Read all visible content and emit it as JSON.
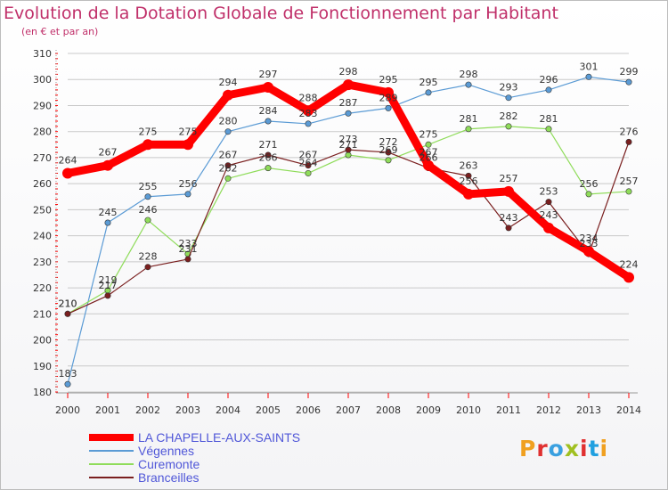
{
  "title": "Evolution de la Dotation Globale de Fonctionnement par Habitant",
  "subtitle": "(en € et par an)",
  "logo_text": "Proxiti",
  "colors": {
    "title": "#c0306a",
    "legend_text": "#5057d8",
    "grid": "#c9c9c9",
    "axis_ticks": "#ff0000",
    "logo_letters": [
      "#f0a020",
      "#e03030",
      "#3aa0e0",
      "#a0c020",
      "#e03030",
      "#20a0e0",
      "#f0a020"
    ]
  },
  "chart_data": {
    "type": "line",
    "title": "Evolution de la Dotation Globale de Fonctionnement par Habitant",
    "subtitle": "(en € et par an)",
    "xlabel": "",
    "ylabel": "",
    "x": [
      "2000",
      "2001",
      "2002",
      "2003",
      "2004",
      "2005",
      "2006",
      "2007",
      "2008",
      "2009",
      "2010",
      "2011",
      "2012",
      "2013",
      "2014"
    ],
    "yticks": [
      "180",
      "190",
      "200",
      "210",
      "220",
      "230",
      "240",
      "250",
      "260",
      "270",
      "280",
      "290",
      "300",
      "310"
    ],
    "ylim": [
      180,
      310
    ],
    "grid": "horizontal",
    "legend_position": "bottom-left",
    "series": [
      {
        "name": "LA CHAPELLE-AUX-SAINTS",
        "color": "#ff0000",
        "values": [
          264,
          267,
          275,
          275,
          294,
          297,
          288,
          298,
          295,
          267,
          256,
          257,
          243,
          234,
          224
        ],
        "labels": [
          "264",
          "267",
          "275",
          "275",
          "294",
          "297",
          "288",
          "298",
          "295",
          "267",
          "256",
          "257",
          "243",
          "234",
          "224"
        ]
      },
      {
        "name": "Végennes",
        "color": "#5b9bd5",
        "values": [
          183,
          245,
          255,
          256,
          280,
          284,
          283,
          287,
          289,
          295,
          298,
          293,
          296,
          301,
          299
        ],
        "labels": [
          "183",
          "245",
          "255",
          "256",
          "280",
          "284",
          "283",
          "287",
          "289",
          "295",
          "298",
          "293",
          "296",
          "301",
          "299"
        ]
      },
      {
        "name": "Curemonte",
        "color": "#8fdc5a",
        "values": [
          210,
          219,
          246,
          233,
          262,
          266,
          264,
          271,
          269,
          275,
          281,
          282,
          281,
          256,
          257
        ],
        "labels": [
          "210",
          "219",
          "246",
          "233",
          "262",
          "266",
          "264",
          "271",
          "269",
          "275",
          "281",
          "282",
          "281",
          "256",
          "257"
        ]
      },
      {
        "name": "Branceilles",
        "color": "#7a1f1f",
        "values": [
          210,
          217,
          228,
          231,
          267,
          271,
          267,
          273,
          272,
          266,
          263,
          243,
          253,
          233,
          276
        ],
        "labels": [
          "210",
          "217",
          "228",
          "231",
          "267",
          "271",
          "267",
          "273",
          "272",
          "266",
          "263",
          "243",
          "253",
          "233",
          "276"
        ]
      }
    ]
  }
}
